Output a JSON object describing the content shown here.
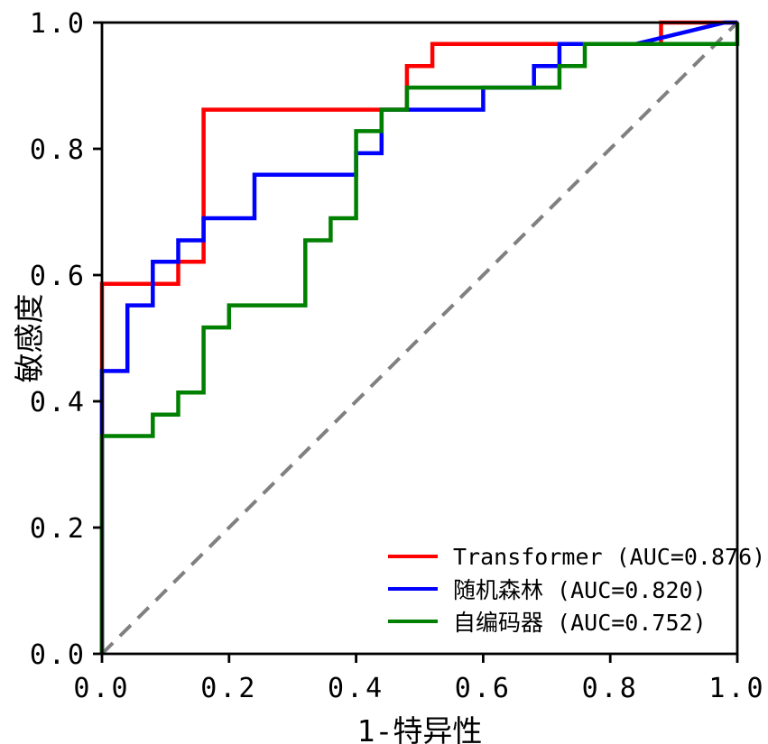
{
  "figure": {
    "background": "#ffffff",
    "axes_color": "#000000"
  },
  "chart_data": {
    "type": "line",
    "subtype": "roc-step-curves",
    "title": "",
    "xlabel": "1-特异性",
    "ylabel": "敏感度",
    "xlim": [
      0,
      1
    ],
    "ylim": [
      0,
      1
    ],
    "grid": false,
    "legend_position": "lower right",
    "x_ticks": [
      0.0,
      0.2,
      0.4,
      0.6,
      0.8,
      1.0
    ],
    "y_ticks": [
      0.0,
      0.2,
      0.4,
      0.6,
      0.8,
      1.0
    ],
    "x_tick_labels": [
      "0.0",
      "0.2",
      "0.4",
      "0.6",
      "0.8",
      "1.0"
    ],
    "y_tick_labels": [
      "0.0",
      "0.2",
      "0.4",
      "0.6",
      "0.8",
      "1.0"
    ],
    "reference_line": {
      "name": "chance-diagonal",
      "color": "#808080",
      "style": "dashed",
      "points": [
        [
          0,
          0
        ],
        [
          1,
          1
        ]
      ]
    },
    "series": [
      {
        "name": "Transformer",
        "auc": 0.876,
        "color": "#ff0000",
        "legend_label": "Transformer (AUC=0.876)",
        "points": [
          [
            0,
            0
          ],
          [
            0,
            0.586
          ],
          [
            0.12,
            0.586
          ],
          [
            0.12,
            0.621
          ],
          [
            0.16,
            0.621
          ],
          [
            0.16,
            0.862
          ],
          [
            0.48,
            0.862
          ],
          [
            0.48,
            0.931
          ],
          [
            0.52,
            0.931
          ],
          [
            0.52,
            0.966
          ],
          [
            0.88,
            0.966
          ],
          [
            0.88,
            1.0
          ],
          [
            1.0,
            1.0
          ]
        ]
      },
      {
        "name": "随机森林",
        "auc": 0.82,
        "color": "#0000ff",
        "legend_label": "随机森林 (AUC=0.820)",
        "points": [
          [
            0,
            0
          ],
          [
            0,
            0.448
          ],
          [
            0.04,
            0.448
          ],
          [
            0.04,
            0.552
          ],
          [
            0.08,
            0.552
          ],
          [
            0.08,
            0.621
          ],
          [
            0.12,
            0.621
          ],
          [
            0.12,
            0.655
          ],
          [
            0.16,
            0.655
          ],
          [
            0.16,
            0.69
          ],
          [
            0.24,
            0.69
          ],
          [
            0.24,
            0.759
          ],
          [
            0.4,
            0.759
          ],
          [
            0.4,
            0.793
          ],
          [
            0.44,
            0.793
          ],
          [
            0.44,
            0.862
          ],
          [
            0.6,
            0.862
          ],
          [
            0.6,
            0.897
          ],
          [
            0.68,
            0.897
          ],
          [
            0.68,
            0.931
          ],
          [
            0.72,
            0.931
          ],
          [
            0.72,
            0.966
          ],
          [
            0.84,
            0.966
          ],
          [
            0.98,
            1.0
          ],
          [
            1.0,
            1.0
          ]
        ]
      },
      {
        "name": "自编码器",
        "auc": 0.752,
        "color": "#008000",
        "legend_label": "自编码器 (AUC=0.752)",
        "points": [
          [
            0,
            0
          ],
          [
            0,
            0.345
          ],
          [
            0.08,
            0.345
          ],
          [
            0.08,
            0.379
          ],
          [
            0.12,
            0.379
          ],
          [
            0.12,
            0.414
          ],
          [
            0.16,
            0.414
          ],
          [
            0.16,
            0.517
          ],
          [
            0.2,
            0.517
          ],
          [
            0.2,
            0.552
          ],
          [
            0.32,
            0.552
          ],
          [
            0.32,
            0.655
          ],
          [
            0.36,
            0.655
          ],
          [
            0.36,
            0.69
          ],
          [
            0.4,
            0.69
          ],
          [
            0.4,
            0.828
          ],
          [
            0.44,
            0.828
          ],
          [
            0.44,
            0.862
          ],
          [
            0.48,
            0.862
          ],
          [
            0.48,
            0.897
          ],
          [
            0.72,
            0.897
          ],
          [
            0.72,
            0.931
          ],
          [
            0.76,
            0.931
          ],
          [
            0.76,
            0.966
          ],
          [
            1.0,
            0.966
          ],
          [
            1.0,
            1.0
          ]
        ]
      }
    ]
  }
}
